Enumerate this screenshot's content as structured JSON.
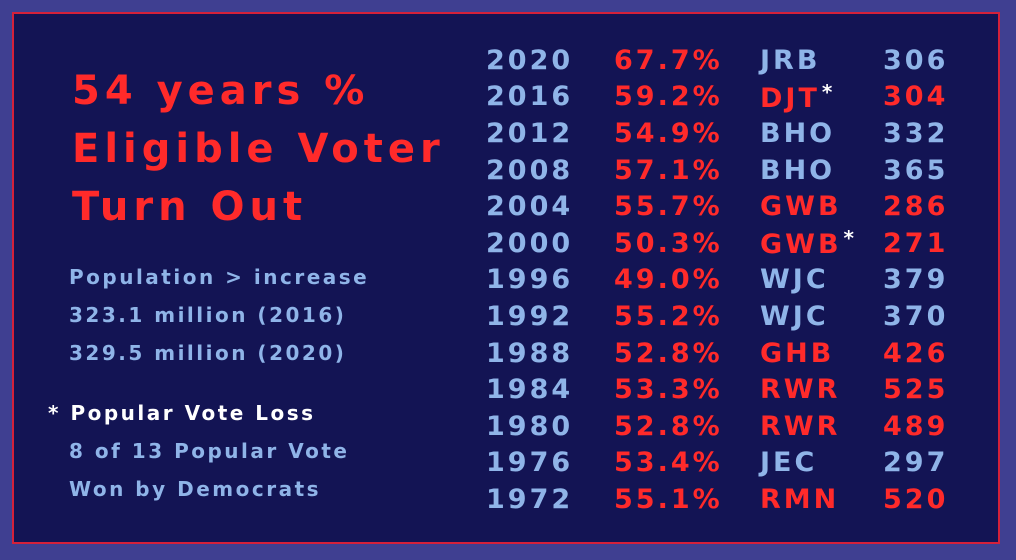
{
  "title": {
    "line1": "54 years %",
    "line2": "Eligible Voter",
    "line3": "Turn Out"
  },
  "population": {
    "line1": "Population > increase",
    "line2": "323.1 million (2016)",
    "line3": "329.5 million (2020)"
  },
  "notes": {
    "asterisk": "*",
    "popular_vote_loss": "Popular Vote Loss",
    "line2": "8 of 13 Popular Vote",
    "line3": "Won by Democrats"
  },
  "colors": {
    "background": "#131454",
    "border": "#d4213a",
    "red": "#ff2a2a",
    "blue": "#8fb4e8",
    "white": "#ffffff"
  },
  "rows": [
    {
      "year": "2020",
      "turnout": "67.7%",
      "president": "JRB",
      "electoral": "306",
      "party_color": "blue",
      "asterisk": ""
    },
    {
      "year": "2016",
      "turnout": "59.2%",
      "president": "DJT",
      "electoral": "304",
      "party_color": "red",
      "asterisk": "*"
    },
    {
      "year": "2012",
      "turnout": "54.9%",
      "president": "BHO",
      "electoral": "332",
      "party_color": "blue",
      "asterisk": ""
    },
    {
      "year": "2008",
      "turnout": "57.1%",
      "president": "BHO",
      "electoral": "365",
      "party_color": "blue",
      "asterisk": ""
    },
    {
      "year": "2004",
      "turnout": "55.7%",
      "president": "GWB",
      "electoral": "286",
      "party_color": "red",
      "asterisk": ""
    },
    {
      "year": "2000",
      "turnout": "50.3%",
      "president": "GWB",
      "electoral": "271",
      "party_color": "red",
      "asterisk": "*"
    },
    {
      "year": "1996",
      "turnout": "49.0%",
      "president": "WJC",
      "electoral": "379",
      "party_color": "blue",
      "asterisk": ""
    },
    {
      "year": "1992",
      "turnout": "55.2%",
      "president": "WJC",
      "electoral": "370",
      "party_color": "blue",
      "asterisk": ""
    },
    {
      "year": "1988",
      "turnout": "52.8%",
      "president": "GHB",
      "electoral": "426",
      "party_color": "red",
      "asterisk": ""
    },
    {
      "year": "1984",
      "turnout": "53.3%",
      "president": "RWR",
      "electoral": "525",
      "party_color": "red",
      "asterisk": ""
    },
    {
      "year": "1980",
      "turnout": "52.8%",
      "president": "RWR",
      "electoral": "489",
      "party_color": "red",
      "asterisk": ""
    },
    {
      "year": "1976",
      "turnout": "53.4%",
      "president": "JEC",
      "electoral": "297",
      "party_color": "blue",
      "asterisk": ""
    },
    {
      "year": "1972",
      "turnout": "55.1%",
      "president": "RMN",
      "electoral": "520",
      "party_color": "red",
      "asterisk": ""
    }
  ]
}
